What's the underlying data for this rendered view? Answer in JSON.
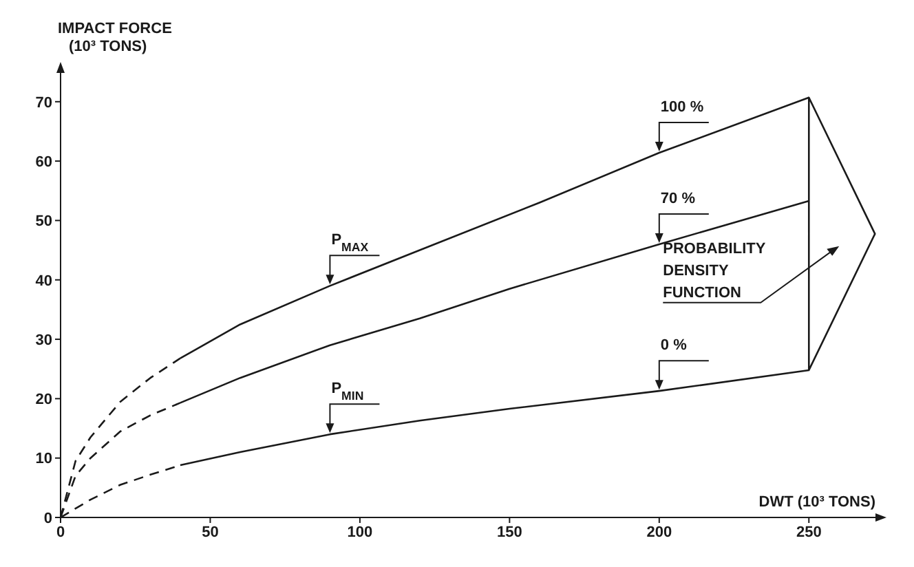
{
  "chart_data": {
    "type": "line",
    "xlabel": "DWT (10³ TONS)",
    "ylabel": "IMPACT FORCE\n(10³ TONS)",
    "xlim": [
      0,
      275
    ],
    "xticks": [
      0,
      50,
      100,
      150,
      200,
      250
    ],
    "ylim": [
      0,
      76
    ],
    "yticks": [
      0,
      10,
      20,
      30,
      40,
      50,
      60,
      70
    ],
    "marker": "none",
    "series": [
      {
        "color": "#1a1a1a",
        "line_style": "dashed",
        "x": [
          0,
          5,
          10,
          20,
          30,
          40
        ],
        "values": [
          0,
          9.5,
          13.5,
          19.5,
          23.5,
          26.8
        ]
      },
      {
        "name": "100 %",
        "color": "#1a1a1a",
        "line_style": "solid",
        "x": [
          40,
          60,
          90,
          120,
          160,
          200,
          250
        ],
        "values": [
          26.8,
          32.5,
          39,
          45,
          53,
          61.4,
          70.7
        ]
      },
      {
        "color": "#1a1a1a",
        "line_style": "dashed",
        "x": [
          0,
          5,
          10,
          20,
          30,
          40
        ],
        "values": [
          0,
          7,
          10,
          14.5,
          17.2,
          19.3
        ]
      },
      {
        "name": "70 %",
        "color": "#1a1a1a",
        "line_style": "solid",
        "x": [
          40,
          60,
          90,
          120,
          150,
          200,
          250
        ],
        "values": [
          19.3,
          23.5,
          29,
          33.5,
          38.5,
          46,
          53.3
        ]
      },
      {
        "color": "#1a1a1a",
        "line_style": "dashed",
        "x": [
          0,
          10,
          20,
          30,
          40
        ],
        "values": [
          0,
          3,
          5.5,
          7.2,
          8.8
        ]
      },
      {
        "name": "0 %",
        "color": "#1a1a1a",
        "line_style": "solid",
        "x": [
          40,
          60,
          90,
          120,
          150,
          200,
          250
        ],
        "values": [
          8.8,
          11,
          14,
          16.3,
          18.3,
          21.3,
          24.8
        ]
      }
    ],
    "annotations": [
      {
        "text": "P$_{MAX}$",
        "x": 90,
        "y": 39
      },
      {
        "text": "P$_{MIN}$",
        "x": 90,
        "y": 14
      },
      "PROBABILITY\nDENSITY\nFUNCTION"
    ]
  }
}
